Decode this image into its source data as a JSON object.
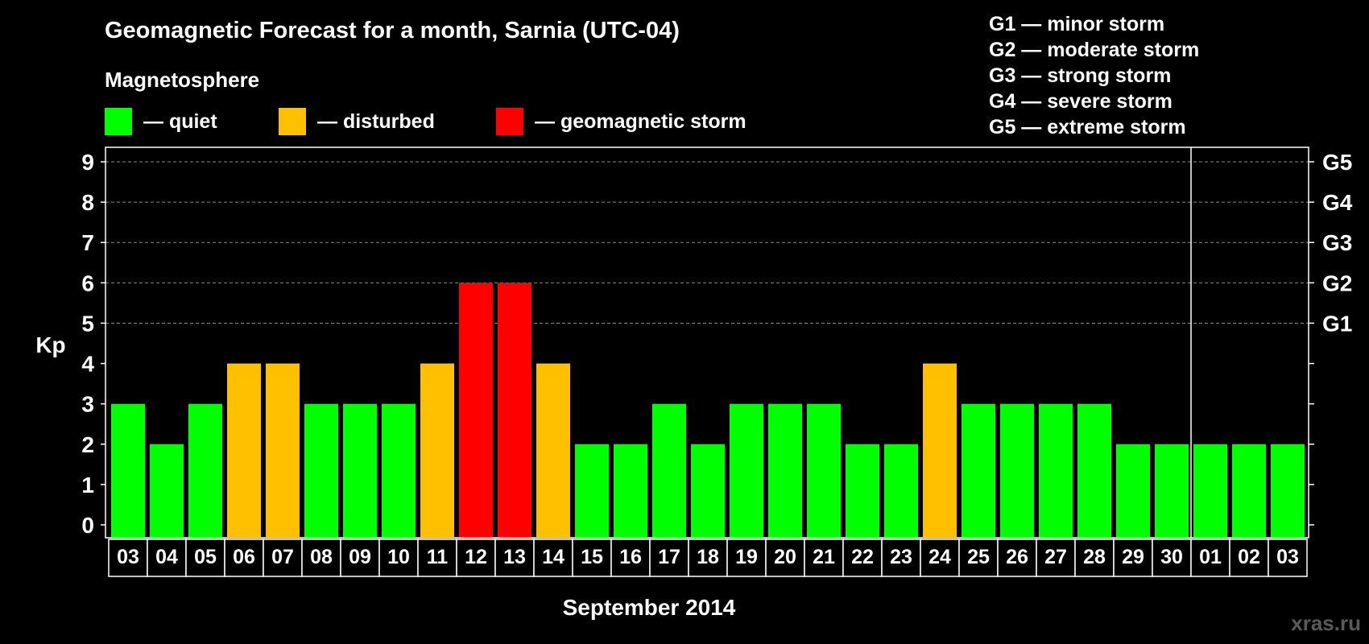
{
  "header": {
    "title": "Geomagnetic Forecast for a month, Sarnia (UTC-04)",
    "section_label": "Magnetosphere"
  },
  "legend": [
    {
      "label": "— quiet",
      "color": "#00ff00"
    },
    {
      "label": "— disturbed",
      "color": "#ffc000"
    },
    {
      "label": "— geomagnetic storm",
      "color": "#ff0000"
    }
  ],
  "storm_scale": [
    "G1 — minor storm",
    "G2 — moderate storm",
    "G3 — strong storm",
    "G4 — severe storm",
    "G5 — extreme storm"
  ],
  "watermark": "xras.ru",
  "chart_data": {
    "type": "bar",
    "title": "Geomagnetic Forecast for a month, Sarnia (UTC-04)",
    "xlabel": "September 2014",
    "ylabel": "Kp",
    "ylim": [
      0,
      9
    ],
    "yticks": [
      "0",
      "1",
      "2",
      "3",
      "4",
      "5",
      "6",
      "7",
      "8",
      "9"
    ],
    "right_ticks": [
      {
        "value": 5,
        "label": "G1"
      },
      {
        "value": 6,
        "label": "G2"
      },
      {
        "value": 7,
        "label": "G3"
      },
      {
        "value": 8,
        "label": "G4"
      },
      {
        "value": 9,
        "label": "G5"
      }
    ],
    "categories": [
      "03",
      "04",
      "05",
      "06",
      "07",
      "08",
      "09",
      "10",
      "11",
      "12",
      "13",
      "14",
      "15",
      "16",
      "17",
      "18",
      "19",
      "20",
      "21",
      "22",
      "23",
      "24",
      "25",
      "26",
      "27",
      "28",
      "29",
      "30",
      "01",
      "02",
      "03"
    ],
    "values": [
      3,
      2,
      3,
      4,
      4,
      3,
      3,
      3,
      4,
      6,
      6,
      4,
      2,
      2,
      3,
      2,
      3,
      3,
      3,
      2,
      2,
      4,
      3,
      3,
      3,
      3,
      2,
      2,
      2,
      2,
      2
    ],
    "month_separator_after_index": 27,
    "colors": {
      "quiet": "#00ff00",
      "disturbed": "#ffc000",
      "storm": "#ff0000"
    }
  }
}
